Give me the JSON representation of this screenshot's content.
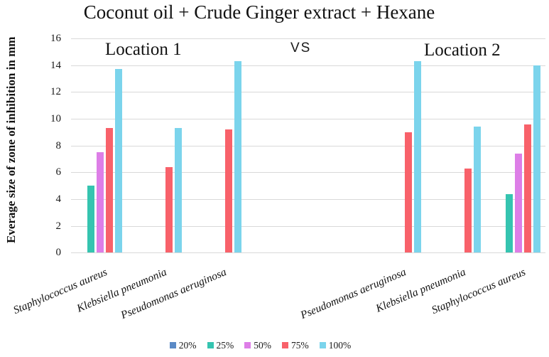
{
  "title": "Coconut oil + Crude Ginger extract + Hexane",
  "vs_label": "VS",
  "location_labels": [
    "Location 1",
    "Location 2"
  ],
  "chart_data": {
    "type": "bar",
    "title": "Coconut oil + Crude Ginger extract + Hexane",
    "xlabel": "",
    "ylabel": "Everage size of zone of inhibition in mm",
    "ylim": [
      0,
      16
    ],
    "ytick_step": 2,
    "grid": true,
    "legend_position": "bottom",
    "section_labels": [
      "Location 1",
      "Location 2"
    ],
    "categories": [
      "Staphylococcus aureus",
      "Klebsiella pneumonia",
      "Pseudomonas aeruginosa",
      "Pseudomonas aeruginosa",
      "Klebsiella pneumonia",
      "Staphylococcus aureus"
    ],
    "series": [
      {
        "name": "20%",
        "color": "#5B8AC6",
        "values": [
          0,
          0,
          0,
          0,
          0,
          0
        ]
      },
      {
        "name": "25%",
        "color": "#35C4B0",
        "values": [
          5.0,
          0,
          0,
          0,
          0,
          4.4
        ]
      },
      {
        "name": "50%",
        "color": "#DD7EE7",
        "values": [
          7.5,
          0,
          0,
          0,
          0,
          7.4
        ]
      },
      {
        "name": "75%",
        "color": "#F8616A",
        "values": [
          9.3,
          6.4,
          9.2,
          9.0,
          6.3,
          9.6
        ]
      },
      {
        "name": "100%",
        "color": "#7BD4EC",
        "values": [
          13.7,
          9.3,
          14.3,
          14.3,
          9.4,
          14.0
        ]
      }
    ]
  },
  "colors": {
    "gridline": "#d9d9d9",
    "text": "#1a1a1a"
  }
}
